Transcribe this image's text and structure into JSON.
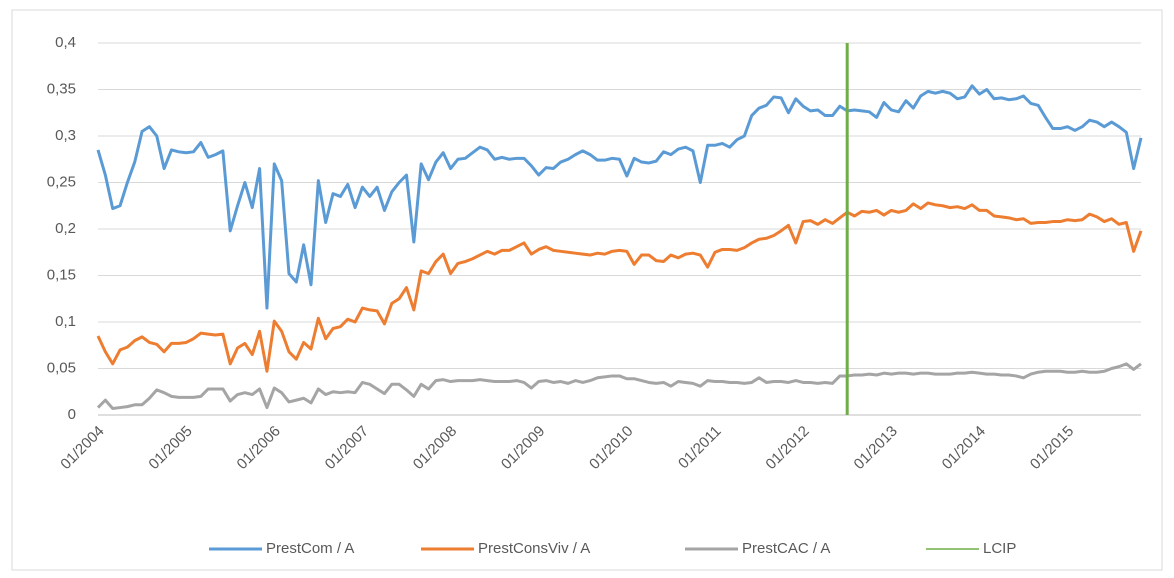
{
  "chart_data": {
    "type": "line",
    "categories": [
      "01/2004",
      null,
      null,
      null,
      null,
      null,
      null,
      null,
      null,
      null,
      null,
      null,
      "01/2005",
      null,
      null,
      null,
      null,
      null,
      null,
      null,
      null,
      null,
      null,
      null,
      "01/2006",
      null,
      null,
      null,
      null,
      null,
      null,
      null,
      null,
      null,
      null,
      null,
      "01/2007",
      null,
      null,
      null,
      null,
      null,
      null,
      null,
      null,
      null,
      null,
      null,
      "01/2008",
      null,
      null,
      null,
      null,
      null,
      null,
      null,
      null,
      null,
      null,
      null,
      "01/2009",
      null,
      null,
      null,
      null,
      null,
      null,
      null,
      null,
      null,
      null,
      null,
      "01/2010",
      null,
      null,
      null,
      null,
      null,
      null,
      null,
      null,
      null,
      null,
      null,
      "01/2011",
      null,
      null,
      null,
      null,
      null,
      null,
      null,
      null,
      null,
      null,
      null,
      "01/2012",
      null,
      null,
      null,
      null,
      null,
      null,
      null,
      null,
      null,
      null,
      null,
      "01/2013",
      null,
      null,
      null,
      null,
      null,
      null,
      null,
      null,
      null,
      null,
      null,
      "01/2014",
      null,
      null,
      null,
      null,
      null,
      null,
      null,
      null,
      null,
      null,
      null,
      "01/2015",
      null,
      null,
      null,
      null,
      null,
      null,
      null,
      null,
      null,
      null
    ],
    "series": [
      {
        "name": "PrestCom / A",
        "color": "#5b9bd5",
        "values": [
          0.285,
          0.258,
          0.222,
          0.225,
          0.25,
          0.272,
          0.305,
          0.31,
          0.3,
          0.265,
          0.285,
          0.283,
          0.282,
          0.283,
          0.293,
          0.277,
          0.28,
          0.284,
          0.198,
          0.225,
          0.25,
          0.223,
          0.265,
          0.115,
          0.27,
          0.252,
          0.152,
          0.143,
          0.183,
          0.14,
          0.252,
          0.207,
          0.238,
          0.235,
          0.248,
          0.223,
          0.245,
          0.235,
          0.245,
          0.22,
          0.24,
          0.25,
          0.258,
          0.186,
          0.27,
          0.253,
          0.272,
          0.282,
          0.265,
          0.275,
          0.276,
          0.282,
          0.288,
          0.285,
          0.275,
          0.277,
          0.275,
          0.276,
          0.276,
          0.268,
          0.258,
          0.266,
          0.265,
          0.272,
          0.275,
          0.28,
          0.284,
          0.28,
          0.274,
          0.274,
          0.276,
          0.275,
          0.257,
          0.276,
          0.272,
          0.271,
          0.273,
          0.283,
          0.28,
          0.286,
          0.288,
          0.284,
          0.25,
          0.29,
          0.29,
          0.292,
          0.288,
          0.296,
          0.3,
          0.322,
          0.33,
          0.333,
          0.342,
          0.341,
          0.325,
          0.34,
          0.332,
          0.327,
          0.328,
          0.322,
          0.322,
          0.332,
          0.327,
          0.328,
          0.327,
          0.326,
          0.32,
          0.336,
          0.328,
          0.326,
          0.338,
          0.33,
          0.343,
          0.348,
          0.346,
          0.348,
          0.346,
          0.34,
          0.342,
          0.354,
          0.345,
          0.35,
          0.34,
          0.341,
          0.339,
          0.34,
          0.343,
          0.335,
          0.333,
          0.32,
          0.308,
          0.308,
          0.31,
          0.306,
          0.31,
          0.317,
          0.315,
          0.31,
          0.315,
          0.31,
          0.304,
          0.265,
          0.298
        ]
      },
      {
        "name": "PrestConsViv / A",
        "color": "#ed7d31",
        "values": [
          0.085,
          0.068,
          0.055,
          0.07,
          0.073,
          0.08,
          0.084,
          0.078,
          0.076,
          0.068,
          0.077,
          0.077,
          0.078,
          0.082,
          0.088,
          0.087,
          0.086,
          0.087,
          0.055,
          0.072,
          0.077,
          0.065,
          0.09,
          0.047,
          0.101,
          0.09,
          0.068,
          0.06,
          0.078,
          0.071,
          0.104,
          0.082,
          0.093,
          0.095,
          0.103,
          0.1,
          0.115,
          0.113,
          0.112,
          0.098,
          0.12,
          0.125,
          0.137,
          0.113,
          0.155,
          0.152,
          0.165,
          0.173,
          0.152,
          0.163,
          0.165,
          0.168,
          0.172,
          0.176,
          0.173,
          0.177,
          0.177,
          0.181,
          0.185,
          0.173,
          0.178,
          0.181,
          0.177,
          0.176,
          0.175,
          0.174,
          0.173,
          0.172,
          0.174,
          0.173,
          0.176,
          0.177,
          0.176,
          0.162,
          0.172,
          0.172,
          0.166,
          0.165,
          0.172,
          0.169,
          0.173,
          0.174,
          0.172,
          0.159,
          0.175,
          0.178,
          0.178,
          0.177,
          0.18,
          0.185,
          0.189,
          0.19,
          0.193,
          0.198,
          0.204,
          0.185,
          0.208,
          0.209,
          0.205,
          0.21,
          0.206,
          0.212,
          0.218,
          0.214,
          0.219,
          0.218,
          0.22,
          0.215,
          0.22,
          0.218,
          0.22,
          0.227,
          0.222,
          0.228,
          0.226,
          0.225,
          0.223,
          0.224,
          0.222,
          0.226,
          0.22,
          0.22,
          0.214,
          0.213,
          0.212,
          0.21,
          0.211,
          0.206,
          0.207,
          0.207,
          0.208,
          0.208,
          0.21,
          0.209,
          0.21,
          0.216,
          0.213,
          0.208,
          0.211,
          0.205,
          0.207,
          0.176,
          0.198
        ]
      },
      {
        "name": "PrestCAC / A",
        "color": "#a5a5a5",
        "values": [
          0.008,
          0.016,
          0.007,
          0.008,
          0.009,
          0.011,
          0.011,
          0.018,
          0.027,
          0.024,
          0.02,
          0.019,
          0.019,
          0.019,
          0.02,
          0.028,
          0.028,
          0.028,
          0.015,
          0.022,
          0.024,
          0.022,
          0.028,
          0.008,
          0.029,
          0.024,
          0.014,
          0.016,
          0.018,
          0.013,
          0.028,
          0.022,
          0.025,
          0.024,
          0.025,
          0.024,
          0.035,
          0.033,
          0.028,
          0.023,
          0.033,
          0.033,
          0.027,
          0.02,
          0.033,
          0.028,
          0.037,
          0.038,
          0.036,
          0.037,
          0.037,
          0.037,
          0.038,
          0.037,
          0.036,
          0.036,
          0.036,
          0.037,
          0.035,
          0.029,
          0.036,
          0.037,
          0.035,
          0.036,
          0.034,
          0.037,
          0.035,
          0.037,
          0.04,
          0.041,
          0.042,
          0.042,
          0.039,
          0.039,
          0.037,
          0.035,
          0.034,
          0.035,
          0.031,
          0.036,
          0.035,
          0.034,
          0.031,
          0.037,
          0.036,
          0.036,
          0.035,
          0.035,
          0.034,
          0.035,
          0.04,
          0.035,
          0.036,
          0.036,
          0.035,
          0.037,
          0.035,
          0.035,
          0.034,
          0.035,
          0.034,
          0.042,
          0.042,
          0.043,
          0.043,
          0.044,
          0.043,
          0.045,
          0.044,
          0.045,
          0.045,
          0.044,
          0.045,
          0.045,
          0.044,
          0.044,
          0.044,
          0.045,
          0.045,
          0.046,
          0.045,
          0.044,
          0.044,
          0.043,
          0.043,
          0.042,
          0.04,
          0.044,
          0.046,
          0.047,
          0.047,
          0.047,
          0.046,
          0.046,
          0.047,
          0.046,
          0.046,
          0.047,
          0.05,
          0.052,
          0.055,
          0.049,
          0.055
        ]
      }
    ],
    "marker_line": {
      "name": "LCIP",
      "color": "#70ad47",
      "category_index": 102
    },
    "ylim": [
      0,
      0.4
    ],
    "yticks": [
      0,
      {
        "value": 0.05,
        "label": "0,05"
      },
      {
        "value": 0.1,
        "label": "0,1"
      },
      {
        "value": 0.15,
        "label": "0,15"
      },
      {
        "value": 0.2,
        "label": "0,2"
      },
      {
        "value": 0.25,
        "label": "0,25"
      },
      {
        "value": 0.3,
        "label": "0,3"
      },
      {
        "value": 0.35,
        "label": "0,35"
      },
      {
        "value": 0.4,
        "label": "0,4"
      }
    ],
    "grid": true,
    "legend": "bottom"
  }
}
